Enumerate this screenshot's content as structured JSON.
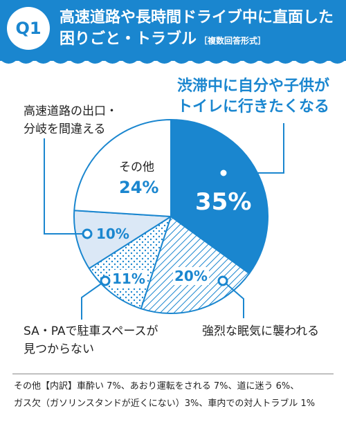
{
  "question": {
    "badge": "Q1",
    "title_line1": "高速道路や長時間ドライブ中に直面した",
    "title_line2": "困りごと・トラブル",
    "subtitle": "［複数回答形式］"
  },
  "colors": {
    "primary": "#1a86cf",
    "light": "#dbe8f6",
    "white": "#ffffff"
  },
  "chart_data": {
    "type": "pie",
    "unit": "%",
    "slices": [
      {
        "label": "渋滞中に自分や子供がトイレに行きたくなる",
        "value": 35,
        "pct_label": "35%",
        "fill": "solid"
      },
      {
        "label": "強烈な眠気に襲われる",
        "value": 20,
        "pct_label": "20%",
        "fill": "hatch"
      },
      {
        "label": "SA・PAで駐車スペースが見つからない",
        "value": 11,
        "pct_label": "11%",
        "fill": "dots"
      },
      {
        "label": "高速道路の出口・分岐を間違える",
        "value": 10,
        "pct_label": "10%",
        "fill": "light"
      },
      {
        "label": "その他",
        "value": 24,
        "pct_label": "24%",
        "fill": "white"
      }
    ]
  },
  "callouts": {
    "toilet_line1": "渋滞中に自分や子供が",
    "toilet_line2": "トイレに行きたくなる",
    "sleepy": "強烈な眠気に襲われる",
    "parking_line1": "SA・PAで駐車スペースが",
    "parking_line2": "見つからない",
    "exit_line1": "高速道路の出口・",
    "exit_line2": "分岐を間違える",
    "other_title": "その他"
  },
  "footnote": {
    "line1": "その他【内訳】車酔い 7%、あおり運転をされる 7%、道に迷う 6%、",
    "line2": "ガス欠（ガソリンスタンドが近くにない）3%、車内での対人トラブル 1%"
  }
}
